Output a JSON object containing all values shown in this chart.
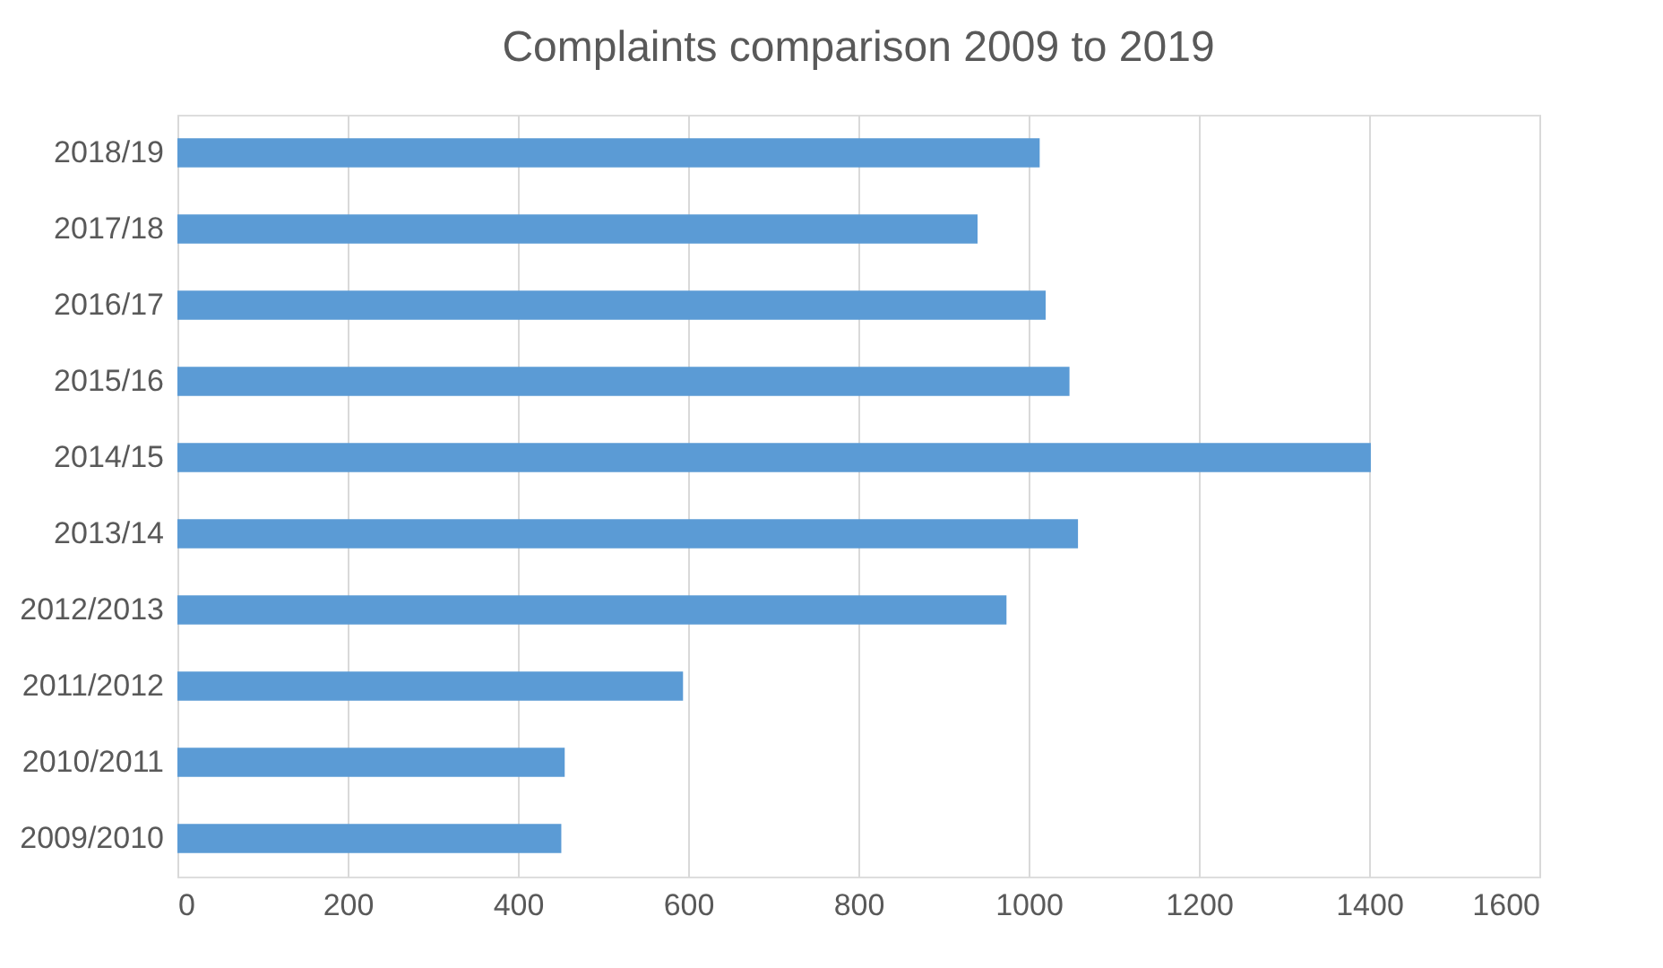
{
  "chart_data": {
    "type": "bar",
    "orientation": "horizontal",
    "title": "Complaints comparison 2009 to 2019",
    "categories": [
      "2018/19",
      "2017/18",
      "2016/17",
      "2015/16",
      "2014/15",
      "2013/14",
      "2012/2013",
      "2011/2012",
      "2010/2011",
      "2009/2010"
    ],
    "values": [
      1013,
      940,
      1020,
      1048,
      1402,
      1058,
      974,
      594,
      455,
      451
    ],
    "color": "#5b9bd5",
    "xlim": [
      0,
      1600
    ],
    "xticks": [
      0,
      200,
      400,
      600,
      800,
      1000,
      1200,
      1400,
      1600
    ],
    "grid": "x"
  }
}
